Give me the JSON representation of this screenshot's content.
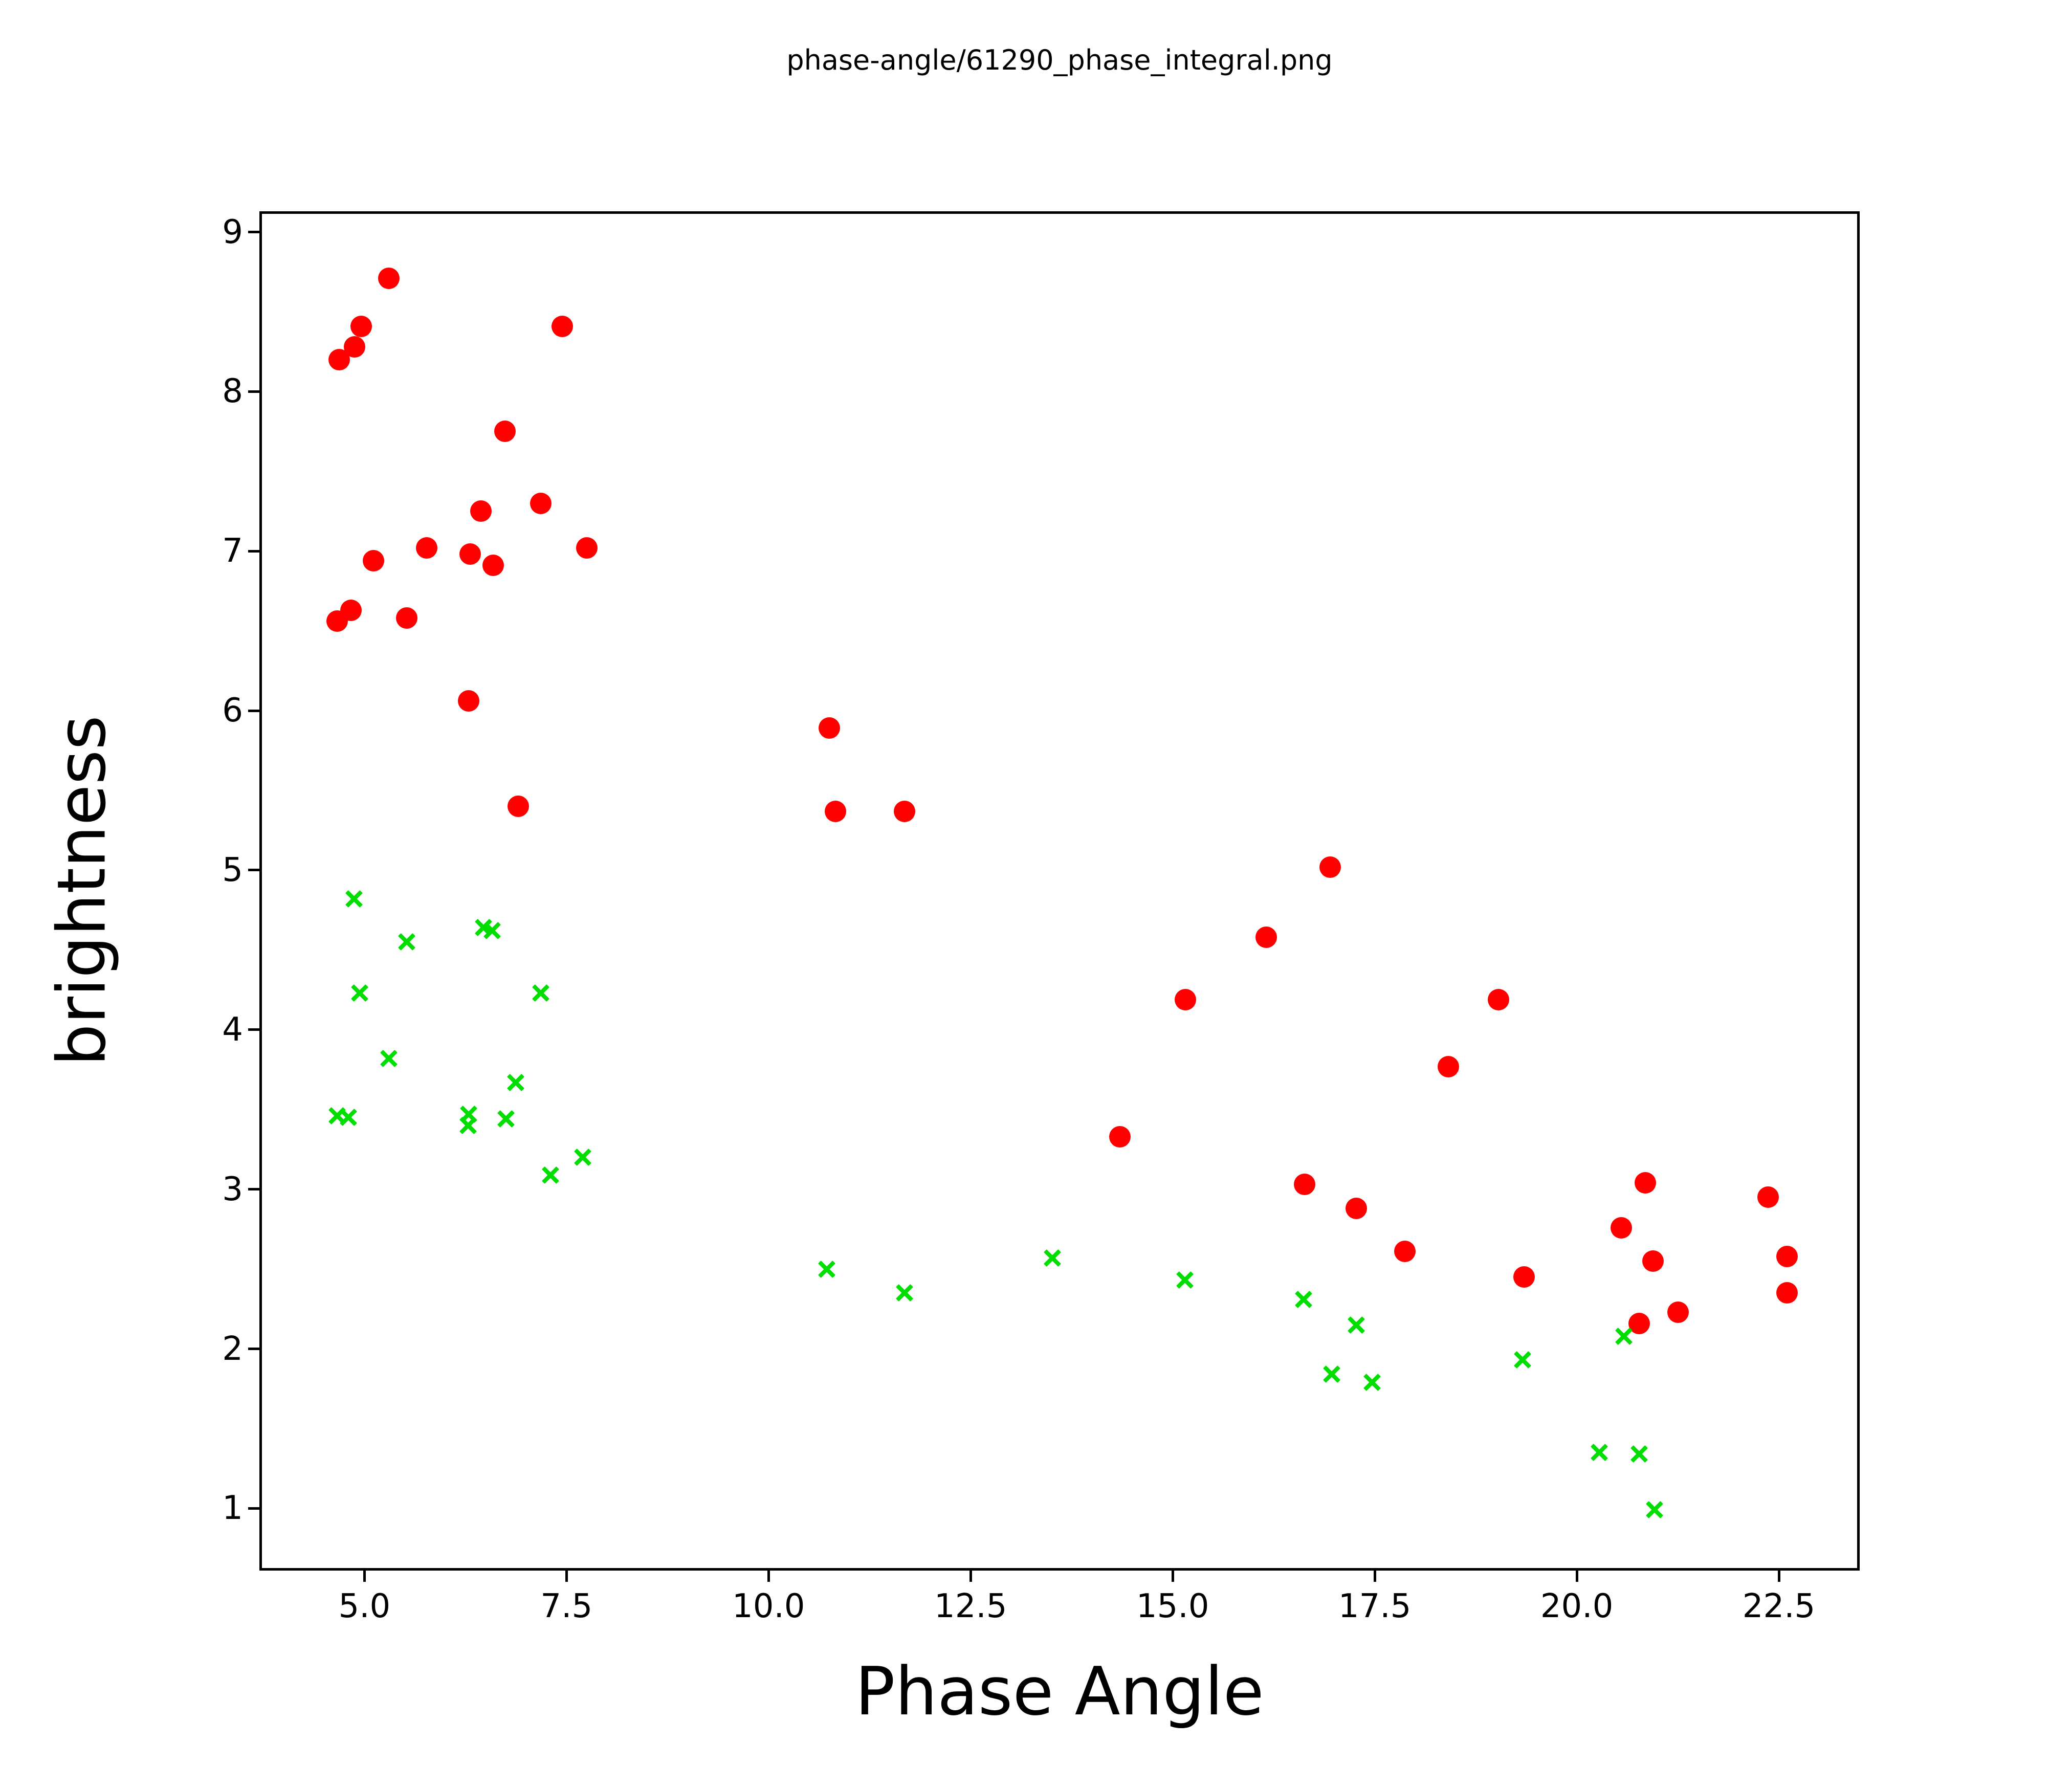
{
  "figure": {
    "background": "#ffffff",
    "text_color": "#000000"
  },
  "chart_data": {
    "type": "scatter",
    "title": "phase-angle/61290_phase_integral.png",
    "xlabel": "Phase Angle",
    "ylabel": "brightness",
    "xlim": [
      3.7,
      23.5
    ],
    "ylim": [
      0.61,
      9.13
    ],
    "x_ticks": [
      5.0,
      7.5,
      10.0,
      12.5,
      15.0,
      17.5,
      20.0,
      22.5
    ],
    "x_tick_labels": [
      "5.0",
      "7.5",
      "10.0",
      "12.5",
      "15.0",
      "17.5",
      "20.0",
      "22.5"
    ],
    "y_ticks": [
      1,
      2,
      3,
      4,
      5,
      6,
      7,
      8,
      9
    ],
    "y_tick_labels": [
      "1",
      "2",
      "3",
      "4",
      "5",
      "6",
      "7",
      "8",
      "9"
    ],
    "grid": false,
    "legend": null,
    "series": [
      {
        "name": "red-circles",
        "marker": "circle",
        "color": "#ff0000",
        "points": [
          [
            4.69,
            8.2
          ],
          [
            4.88,
            8.28
          ],
          [
            4.96,
            8.41
          ],
          [
            5.3,
            8.71
          ],
          [
            7.45,
            8.41
          ],
          [
            6.74,
            7.75
          ],
          [
            7.18,
            7.3
          ],
          [
            6.44,
            7.25
          ],
          [
            7.75,
            7.02
          ],
          [
            5.77,
            7.02
          ],
          [
            6.31,
            6.98
          ],
          [
            6.59,
            6.91
          ],
          [
            5.11,
            6.94
          ],
          [
            4.83,
            6.63
          ],
          [
            4.66,
            6.56
          ],
          [
            5.52,
            6.58
          ],
          [
            6.29,
            6.06
          ],
          [
            6.9,
            5.4
          ],
          [
            10.75,
            5.89
          ],
          [
            10.83,
            5.37
          ],
          [
            11.68,
            5.37
          ],
          [
            16.95,
            5.02
          ],
          [
            16.16,
            4.58
          ],
          [
            15.16,
            4.19
          ],
          [
            19.03,
            4.19
          ],
          [
            18.41,
            3.77
          ],
          [
            14.35,
            3.33
          ],
          [
            16.63,
            3.03
          ],
          [
            17.27,
            2.88
          ],
          [
            17.87,
            2.61
          ],
          [
            19.35,
            2.45
          ],
          [
            20.55,
            2.76
          ],
          [
            20.85,
            3.04
          ],
          [
            20.94,
            2.55
          ],
          [
            20.77,
            2.16
          ],
          [
            21.25,
            2.23
          ],
          [
            22.37,
            2.95
          ],
          [
            22.6,
            2.58
          ],
          [
            22.6,
            2.35
          ]
        ]
      },
      {
        "name": "green-crosses",
        "marker": "x",
        "color": "#00dd00",
        "points": [
          [
            4.87,
            4.82
          ],
          [
            5.52,
            4.55
          ],
          [
            4.94,
            4.23
          ],
          [
            5.3,
            3.82
          ],
          [
            4.66,
            3.46
          ],
          [
            4.8,
            3.45
          ],
          [
            6.47,
            4.64
          ],
          [
            6.58,
            4.62
          ],
          [
            6.29,
            3.47
          ],
          [
            6.28,
            3.4
          ],
          [
            6.75,
            3.44
          ],
          [
            6.87,
            3.67
          ],
          [
            7.18,
            4.23
          ],
          [
            7.3,
            3.09
          ],
          [
            7.7,
            3.2
          ],
          [
            10.72,
            2.5
          ],
          [
            11.68,
            2.35
          ],
          [
            13.51,
            2.57
          ],
          [
            15.15,
            2.43
          ],
          [
            16.62,
            2.31
          ],
          [
            17.27,
            2.15
          ],
          [
            16.97,
            1.84
          ],
          [
            17.47,
            1.79
          ],
          [
            19.33,
            1.93
          ],
          [
            20.28,
            1.35
          ],
          [
            20.58,
            2.08
          ],
          [
            20.77,
            1.34
          ],
          [
            20.96,
            0.99
          ]
        ]
      }
    ]
  }
}
